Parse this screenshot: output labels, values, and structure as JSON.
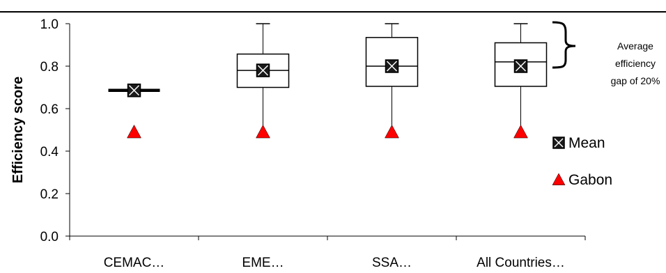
{
  "title": "",
  "chart_data": {
    "type": "box",
    "ylabel": "Efficiency score",
    "xlabel": "",
    "ylim": [
      0,
      1.0
    ],
    "y_ticks": [
      "0.0",
      "0.2",
      "0.4",
      "0.6",
      "0.8",
      "1.0"
    ],
    "grid": false,
    "legend_position": "right",
    "categories": [
      "CEMAC…",
      "EME…",
      "SSA…",
      "All Countries…"
    ],
    "boxes": [
      {
        "category": "CEMAC…",
        "min": 0.686,
        "q1": 0.686,
        "median": 0.686,
        "q3": 0.686,
        "max": 0.686,
        "mean": 0.686,
        "gabon": 0.49
      },
      {
        "category": "EME…",
        "min": 0.49,
        "q1": 0.7,
        "median": 0.78,
        "q3": 0.857,
        "max": 1.0,
        "mean": 0.78,
        "gabon": 0.49
      },
      {
        "category": "SSA…",
        "min": 0.49,
        "q1": 0.705,
        "median": 0.8,
        "q3": 0.935,
        "max": 1.0,
        "mean": 0.8,
        "gabon": 0.49
      },
      {
        "category": "All Countries…",
        "min": 0.49,
        "q1": 0.705,
        "median": 0.82,
        "q3": 0.91,
        "max": 1.0,
        "mean": 0.8,
        "gabon": 0.49
      }
    ],
    "legend": [
      {
        "name": "Mean",
        "marker": "boxed-x-square",
        "color": "#1a1a1a"
      },
      {
        "name": "Gabon",
        "marker": "triangle",
        "color": "#ff0000"
      }
    ],
    "annotation": {
      "lines": [
        "Average",
        "efficiency",
        "gap of 20%"
      ]
    }
  }
}
